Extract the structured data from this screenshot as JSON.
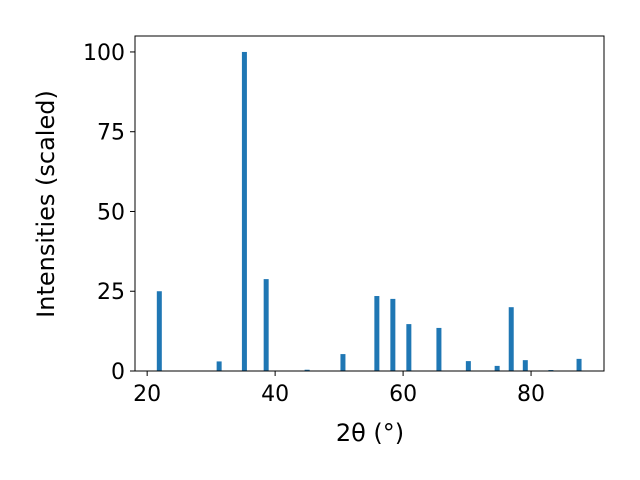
{
  "chart_data": {
    "type": "bar",
    "x_label": "2θ (°)",
    "y_label": "Intensities (scaled)",
    "x": [
      21.9,
      31.25,
      35.2,
      38.6,
      45.0,
      50.6,
      55.9,
      58.4,
      60.9,
      65.6,
      70.2,
      74.7,
      76.9,
      79.1,
      83.1,
      87.5
    ],
    "values": [
      25,
      3,
      100,
      28.8,
      0.4,
      5.3,
      23.5,
      22.6,
      14.7,
      13.5,
      3.1,
      1.6,
      20.0,
      3.4,
      0.3,
      3.8
    ],
    "color": "#1f77b4",
    "xlim": [
      18.1,
      91.4
    ],
    "xticks": [
      20,
      40,
      60,
      80
    ],
    "ylim": [
      0,
      105
    ],
    "yticks": [
      0,
      25,
      50,
      75,
      100
    ],
    "grid": false
  }
}
